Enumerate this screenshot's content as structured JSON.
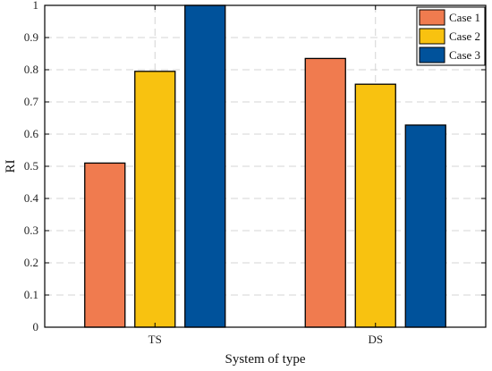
{
  "chart_data": {
    "type": "bar",
    "title": "",
    "xlabel": "System of type",
    "ylabel": "RI",
    "ylim": [
      0,
      1
    ],
    "yticks": [
      "0",
      "0.1",
      "0.2",
      "0.3",
      "0.4",
      "0.5",
      "0.6",
      "0.7",
      "0.8",
      "0.9",
      "1"
    ],
    "categories": [
      "TS",
      "DS"
    ],
    "series": [
      {
        "name": "Case 1",
        "color": "#F07B4F",
        "values": [
          0.51,
          0.835
        ]
      },
      {
        "name": "Case 2",
        "color": "#F8C210",
        "values": [
          0.795,
          0.755
        ]
      },
      {
        "name": "Case 3",
        "color": "#00529B",
        "values": [
          1.0,
          0.628
        ]
      }
    ],
    "grid": true,
    "legend_position": "top-right"
  }
}
